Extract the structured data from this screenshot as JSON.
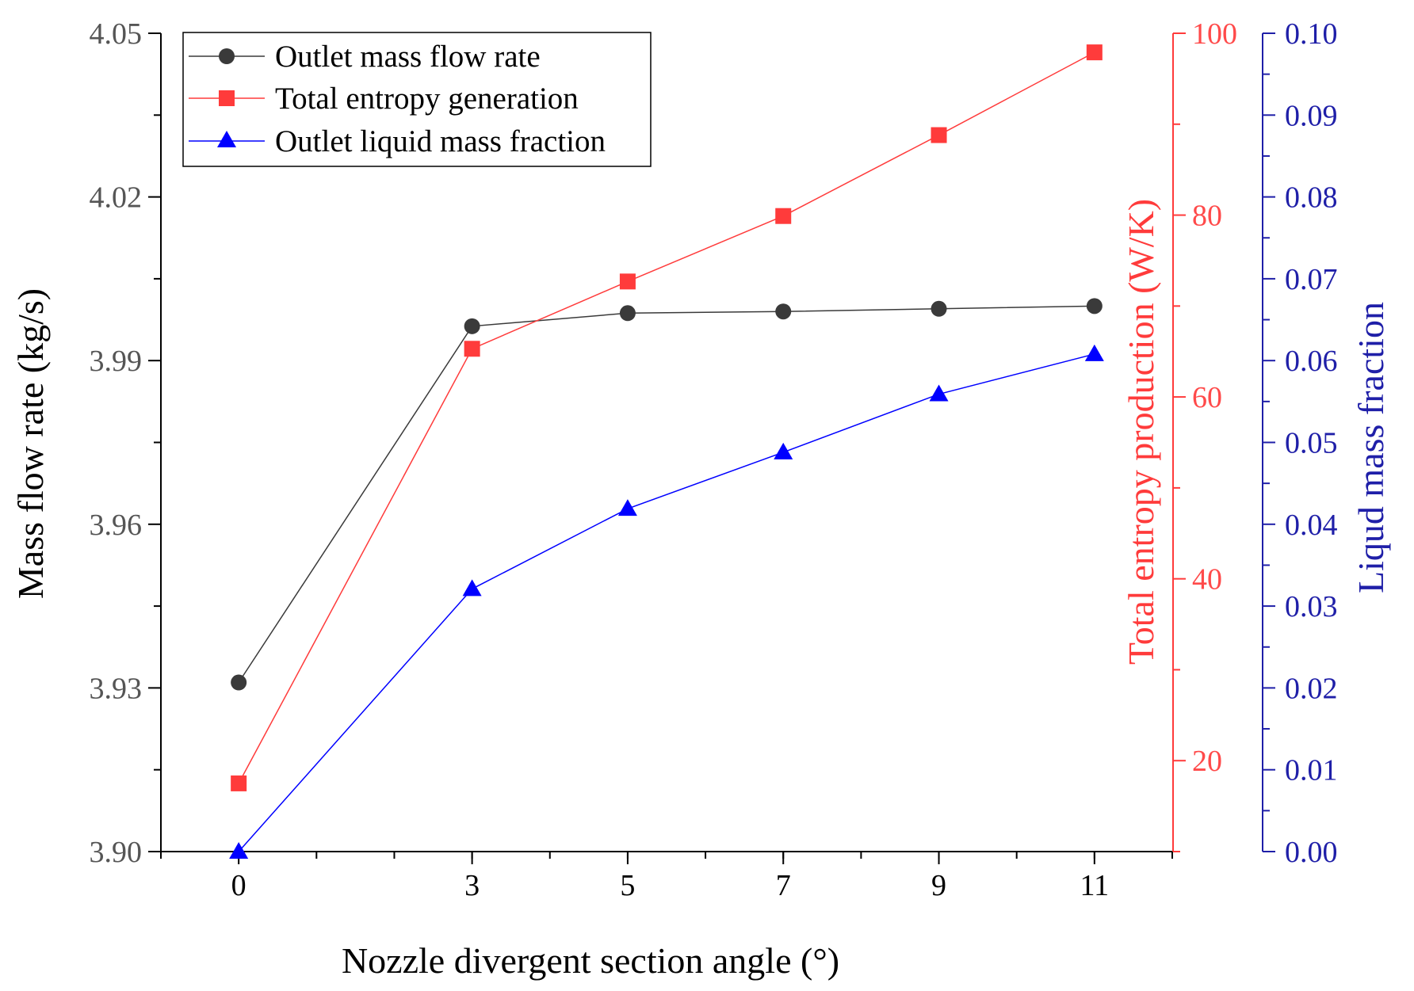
{
  "colors": {
    "left_axis": "#000000",
    "left_tick_text": "#555555",
    "series_mass_flow": "#3a3a3a",
    "series_entropy": "#ff3b3b",
    "series_liquid": "#0000ff",
    "right_axis_red": "#ff3b3b",
    "right_axis_blue": "#1f1fa8",
    "right_tick_text_red": "#ff4a4a",
    "right_tick_text_blue": "#1f1fa8",
    "background": "#ffffff"
  },
  "chart_data": {
    "type": "line",
    "title": "",
    "x": [
      0,
      3,
      5,
      7,
      9,
      11
    ],
    "xlabel": "Nozzle divergent section angle (°)",
    "x_ticks": [
      "0",
      "3",
      "5",
      "7",
      "9",
      "11"
    ],
    "y_left": {
      "label": "Mass flow rate (kg/s)",
      "lim": [
        3.9,
        4.05
      ],
      "ticks": [
        "3.90",
        "3.93",
        "3.96",
        "3.99",
        "4.02",
        "4.05"
      ]
    },
    "y_right_1": {
      "label": "Total entropy production (W/K)",
      "lim": [
        10,
        100
      ],
      "ticks": [
        "20",
        "40",
        "60",
        "80",
        "100"
      ]
    },
    "y_right_2": {
      "label": "Liqud mass fraction",
      "lim": [
        0.0,
        0.1
      ],
      "ticks": [
        "0.00",
        "0.01",
        "0.02",
        "0.03",
        "0.04",
        "0.05",
        "0.06",
        "0.07",
        "0.08",
        "0.09",
        "0.10"
      ]
    },
    "series": [
      {
        "name": "Outlet mass flow rate",
        "axis": "left",
        "marker": "circle",
        "values": [
          3.931,
          3.9963,
          3.9987,
          3.999,
          3.9995,
          4.0
        ]
      },
      {
        "name": "Total entropy generation",
        "axis": "right_1",
        "marker": "square",
        "values": [
          17.5,
          65.3,
          72.7,
          79.9,
          88.8,
          97.9
        ]
      },
      {
        "name": "Outlet liquid mass fraction",
        "axis": "right_2",
        "marker": "triangle",
        "values": [
          0.0,
          0.0321,
          0.0419,
          0.0488,
          0.0559,
          0.0608
        ]
      }
    ],
    "grid": false,
    "legend_position": "top-left"
  }
}
